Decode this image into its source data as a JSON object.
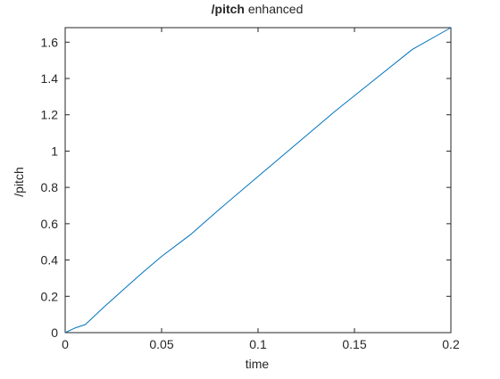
{
  "chart_data": {
    "type": "line",
    "title_bold": "/pitch",
    "title_rest": " enhanced",
    "xlabel": "time",
    "ylabel": "/pitch",
    "xlim": [
      0,
      0.2
    ],
    "ylim": [
      0,
      1.68
    ],
    "xticks": [
      0,
      0.05,
      0.1,
      0.15,
      0.2
    ],
    "xtick_labels": [
      "0",
      "0.05",
      "0.1",
      "0.15",
      "0.2"
    ],
    "yticks": [
      0,
      0.2,
      0.4,
      0.6,
      0.8,
      1,
      1.2,
      1.4,
      1.6
    ],
    "ytick_labels": [
      "0",
      "0.2",
      "0.4",
      "0.6",
      "0.8",
      "1",
      "1.2",
      "1.4",
      "1.6"
    ],
    "grid": false,
    "series": [
      {
        "color": "#0072bd",
        "x": [
          0,
          0.005,
          0.0105,
          0.016,
          0.02,
          0.03,
          0.04,
          0.05,
          0.06,
          0.065,
          0.08,
          0.1,
          0.12,
          0.14,
          0.16,
          0.18,
          0.2
        ],
        "y": [
          0,
          0.025,
          0.045,
          0.1,
          0.14,
          0.235,
          0.33,
          0.42,
          0.5,
          0.54,
          0.68,
          0.86,
          1.04,
          1.22,
          1.39,
          1.56,
          1.68
        ]
      }
    ]
  }
}
